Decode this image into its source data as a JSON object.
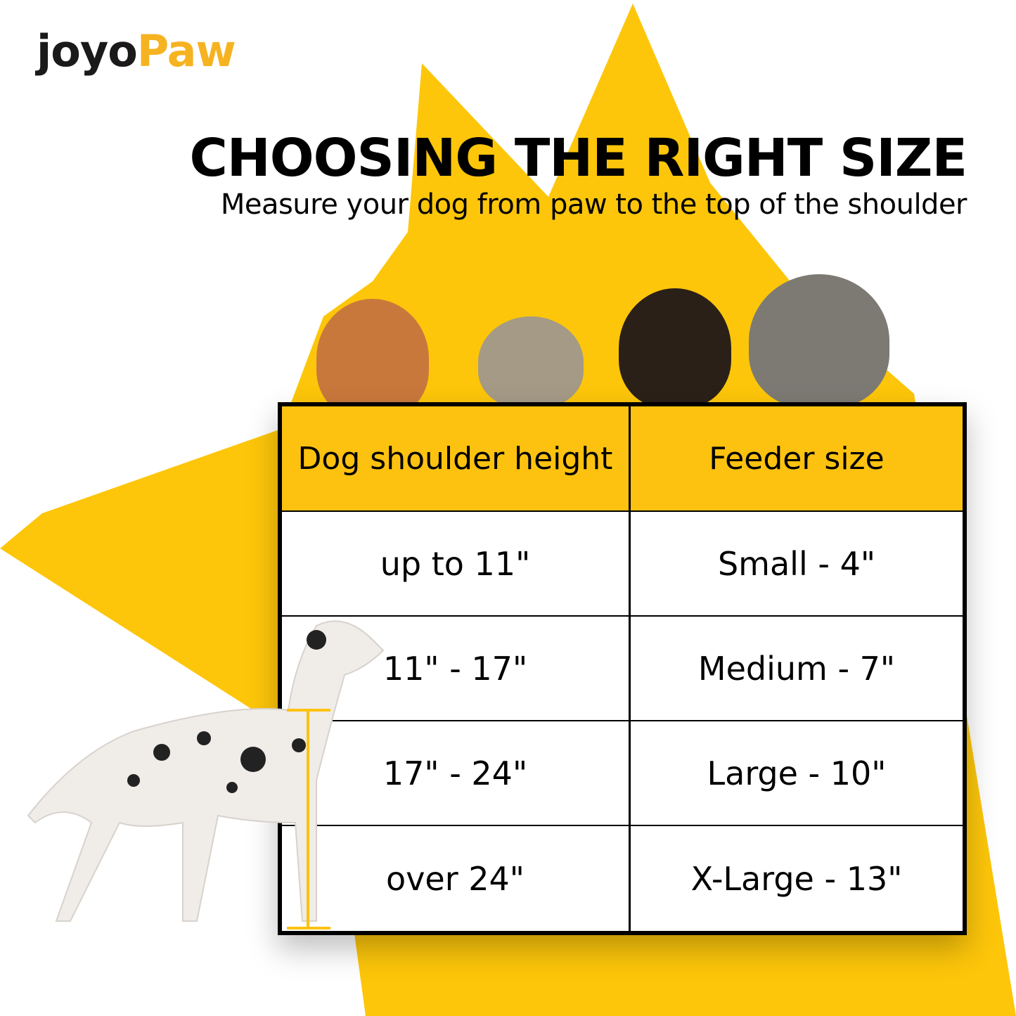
{
  "brand": {
    "logo_text_part1": "joyo",
    "logo_text_part2": "Paw"
  },
  "heading": {
    "title": "CHOOSING THE RIGHT SIZE",
    "subtitle": "Measure your dog from paw to the top of the shoulder"
  },
  "colors": {
    "accent_yellow": "#fdc20f",
    "logo_orange": "#f6b321",
    "text": "#000000"
  },
  "size_table": {
    "headers": [
      "Dog shoulder height",
      "Feeder size"
    ],
    "rows": [
      {
        "height": "up to 11\"",
        "size": "Small - 4\""
      },
      {
        "height": "11\" - 17\"",
        "size": "Medium - 7\""
      },
      {
        "height": "17\" - 24\"",
        "size": "Large - 10\""
      },
      {
        "height": "over 24\"",
        "size": "X-Large - 13\""
      }
    ]
  }
}
